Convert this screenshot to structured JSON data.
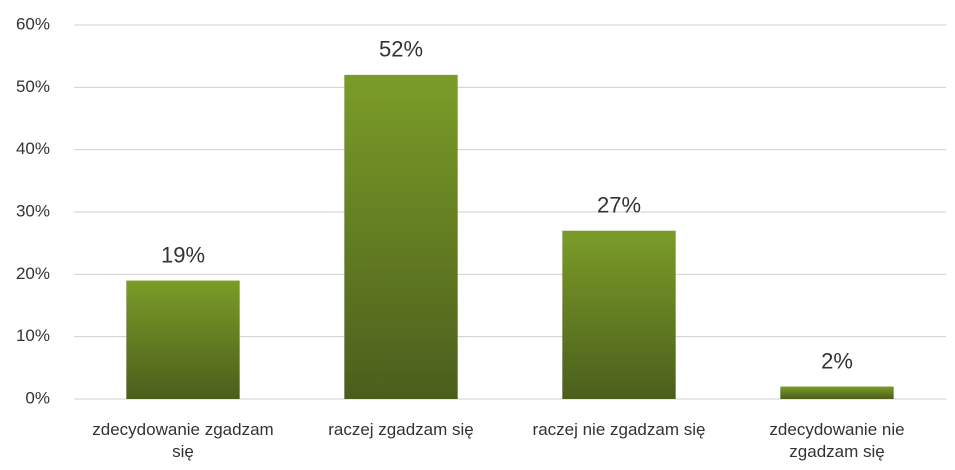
{
  "chart_data": {
    "type": "bar",
    "categories": [
      "zdecydowanie zgadzam się",
      "raczej zgadzam się",
      "raczej nie zgadzam się",
      "zdecydowanie nie zgadzam się"
    ],
    "values": [
      19,
      52,
      27,
      2
    ],
    "value_labels": [
      "19%",
      "52%",
      "27%",
      "2%"
    ],
    "color": "#6b8a22",
    "ylim": [
      0,
      60
    ],
    "yticks": [
      {
        "value": 0,
        "label": "0%"
      },
      {
        "value": 10,
        "label": "10%"
      },
      {
        "value": 20,
        "label": "20%"
      },
      {
        "value": 30,
        "label": "30%"
      },
      {
        "value": 40,
        "label": "40%"
      },
      {
        "value": 50,
        "label": "50%"
      },
      {
        "value": 60,
        "label": "60%"
      }
    ],
    "grid": true
  }
}
